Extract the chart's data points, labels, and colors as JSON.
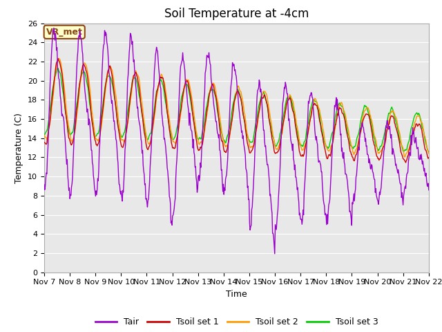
{
  "title": "Soil Temperature at -4cm",
  "xlabel": "Time",
  "ylabel": "Temperature (C)",
  "ylim": [
    0,
    26
  ],
  "yticks": [
    0,
    2,
    4,
    6,
    8,
    10,
    12,
    14,
    16,
    18,
    20,
    22,
    24,
    26
  ],
  "background_color": "#ffffff",
  "plot_bg_color": "#e8e8e8",
  "grid_color": "#ffffff",
  "annotation_text": "VR_met",
  "annotation_bg": "#ffffcc",
  "annotation_border": "#8B4513",
  "line_colors": {
    "Tair": "#9900cc",
    "Tsoil set 1": "#cc0000",
    "Tsoil set 2": "#ff9900",
    "Tsoil set 3": "#00cc00"
  },
  "legend_labels": [
    "Tair",
    "Tsoil set 1",
    "Tsoil set 2",
    "Tsoil set 3"
  ],
  "xtick_labels": [
    "Nov 7",
    "Nov 8",
    "Nov 9",
    "Nov 10",
    "Nov 11",
    "Nov 12",
    "Nov 13",
    "Nov 14",
    "Nov 15",
    "Nov 16",
    "Nov 17",
    "Nov 18",
    "Nov 19",
    "Nov 20",
    "Nov 21",
    "Nov 22"
  ],
  "num_days": 15,
  "points_per_day": 48
}
